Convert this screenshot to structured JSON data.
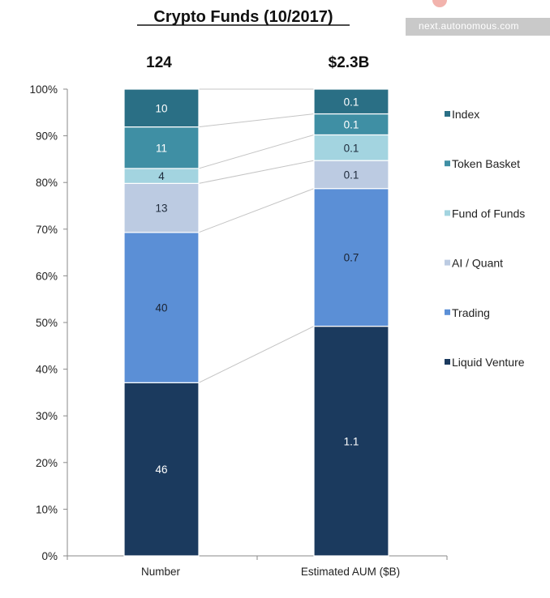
{
  "watermark": "next.autonomous.com",
  "chart_data": {
    "type": "bar",
    "stacked": "100%",
    "title": "Crypto Funds (10/2017)",
    "categories": [
      "Number",
      "Estimated AUM ($B)"
    ],
    "column_totals": [
      "124",
      "$2.3B"
    ],
    "series": [
      {
        "name": "Liquid Venture",
        "values": [
          46,
          1.1
        ],
        "labels": [
          "46",
          "1.1"
        ],
        "color": "#1b3a5e"
      },
      {
        "name": "Trading",
        "values": [
          40,
          0.7
        ],
        "labels": [
          "40",
          "0.7"
        ],
        "color": "#5b8fd6"
      },
      {
        "name": "AI / Quant",
        "values": [
          13,
          0.1
        ],
        "labels": [
          "13",
          "0.1"
        ],
        "color": "#bccbe2"
      },
      {
        "name": "Fund of Funds",
        "values": [
          4,
          0.1
        ],
        "labels": [
          "4",
          "0.1"
        ],
        "color": "#a3d4e0"
      },
      {
        "name": "Token Basket",
        "values": [
          11,
          0.1
        ],
        "labels": [
          "11",
          "0.1"
        ],
        "color": "#3f8fa4"
      },
      {
        "name": "Index",
        "values": [
          10,
          0.1
        ],
        "labels": [
          "10",
          "0.1"
        ],
        "color": "#2a6f85"
      }
    ],
    "segment_shares": [
      [
        0.371,
        0.322,
        0.105,
        0.032,
        0.089,
        0.081
      ],
      [
        0.492,
        0.295,
        0.06,
        0.055,
        0.045,
        0.053
      ]
    ],
    "legend_order": [
      "Index",
      "Token Basket",
      "Fund of Funds",
      "AI / Quant",
      "Trading",
      "Liquid Venture"
    ],
    "legend_position": "right",
    "y_ticks": [
      "0%",
      "10%",
      "20%",
      "30%",
      "40%",
      "50%",
      "60%",
      "70%",
      "80%",
      "90%",
      "100%"
    ],
    "ylim": [
      0,
      100
    ],
    "grid": false,
    "connector_lines": true
  }
}
